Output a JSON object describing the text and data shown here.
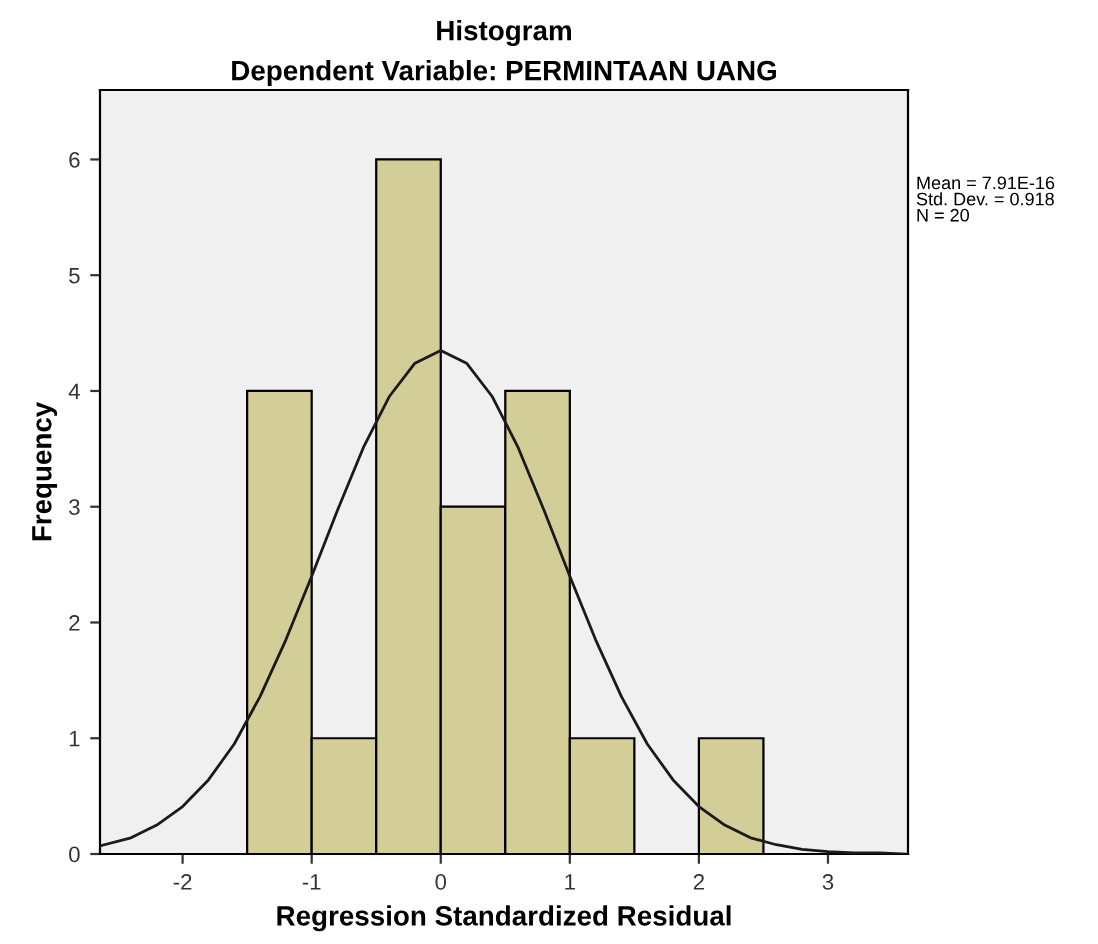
{
  "chart_data": {
    "type": "histogram",
    "title": "Histogram",
    "subtitle": "Dependent Variable: PERMINTAAN UANG",
    "xlabel": "Regression Standardized Residual",
    "ylabel": "Frequency",
    "series": [
      {
        "bins": [
          -1.5,
          -1.0,
          -0.5,
          0.0,
          0.5,
          1.0,
          1.5,
          2.0,
          2.5
        ],
        "values": [
          4,
          1,
          6,
          3,
          4,
          1,
          0,
          1
        ],
        "color": "#d3ce97"
      },
      {
        "type": "line",
        "color": "#1a1a1a",
        "x": [
          -2.64,
          -2.4,
          -2.2,
          -2.0,
          -1.8,
          -1.6,
          -1.4,
          -1.2,
          -1.0,
          -0.8,
          -0.6,
          -0.4,
          -0.2,
          0.0,
          0.2,
          0.4,
          0.6,
          0.8,
          1.0,
          1.2,
          1.4,
          1.6,
          1.8,
          2.0,
          2.2,
          2.4,
          2.6,
          2.8,
          3.0,
          3.2,
          3.4,
          3.6
        ],
        "values": [
          0.07,
          0.14,
          0.25,
          0.41,
          0.64,
          0.95,
          1.36,
          1.85,
          2.4,
          2.97,
          3.51,
          3.95,
          4.24,
          4.35,
          4.24,
          3.95,
          3.51,
          2.97,
          2.4,
          1.85,
          1.36,
          0.95,
          0.64,
          0.41,
          0.25,
          0.14,
          0.08,
          0.04,
          0.02,
          0.01,
          0.01,
          0.0
        ]
      }
    ],
    "xlim": [
      -2.64,
      3.62
    ],
    "xticks": [
      -2,
      -1,
      0,
      1,
      2,
      3
    ],
    "ylim": [
      0,
      6.6
    ],
    "yticks": [
      0,
      1,
      2,
      3,
      4,
      5,
      6
    ],
    "grid": false,
    "legend": false,
    "annotations": [
      "Mean = 7.91E-16\nStd. Dev. = 0.918\nN = 20"
    ]
  }
}
